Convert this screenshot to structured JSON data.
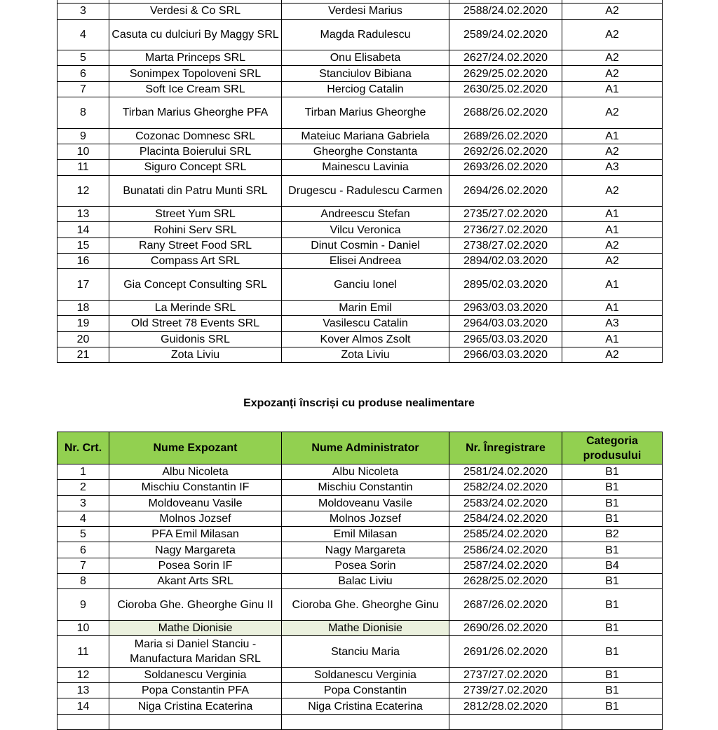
{
  "top_table": {
    "rows": [
      [
        "3",
        "Verdesi & Co SRL",
        "Verdesi Marius",
        "2588/24.02.2020",
        "A2"
      ],
      [
        "4",
        "Casuta cu dulciuri By Maggy SRL",
        "Magda Radulescu",
        "2589/24.02.2020",
        "A2"
      ],
      [
        "5",
        "Marta Princeps SRL",
        "Onu Elisabeta",
        "2627/24.02.2020",
        "A2"
      ],
      [
        "6",
        "Sonimpex Topoloveni SRL",
        "Stanciulov Bibiana",
        "2629/25.02.2020",
        "A2"
      ],
      [
        "7",
        "Soft Ice Cream SRL",
        "Herciog Catalin",
        "2630/25.02.2020",
        "A1"
      ],
      [
        "8",
        "Tirban Marius Gheorghe PFA",
        "Tirban Marius Gheorghe",
        "2688/26.02.2020",
        "A2"
      ],
      [
        "9",
        "Cozonac Domnesc SRL",
        "Mateiuc Mariana Gabriela",
        "2689/26.02.2020",
        "A1"
      ],
      [
        "10",
        "Placinta Boierului SRL",
        "Gheorghe Constanta",
        "2692/26.02.2020",
        "A2"
      ],
      [
        "11",
        "Siguro Concept SRL",
        "Mainescu Lavinia",
        "2693/26.02.2020",
        "A3"
      ],
      [
        "12",
        "Bunatati din Patru Munti SRL",
        "Drugescu - Radulescu Carmen",
        "2694/26.02.2020",
        "A2"
      ],
      [
        "13",
        "Street Yum SRL",
        "Andreescu Stefan",
        "2735/27.02.2020",
        "A1"
      ],
      [
        "14",
        "Rohini Serv SRL",
        "Vilcu Veronica",
        "2736/27.02.2020",
        "A1"
      ],
      [
        "15",
        "Rany Street Food SRL",
        "Dinut Cosmin - Daniel",
        "2738/27.02.2020",
        "A2"
      ],
      [
        "16",
        "Compass Art SRL",
        "Elisei Andreea",
        "2894/02.03.2020",
        "A2"
      ],
      [
        "17",
        "Gia Concept Consulting SRL",
        "Ganciu Ionel",
        "2895/02.03.2020",
        "A1"
      ],
      [
        "18",
        "La Merinde SRL",
        "Marin Emil",
        "2963/03.03.2020",
        "A1"
      ],
      [
        "19",
        "Old Street 78 Events SRL",
        "Vasilescu Catalin",
        "2964/03.03.2020",
        "A3"
      ],
      [
        "20",
        "Guidonis SRL",
        "Kover Almos Zsolt",
        "2965/03.03.2020",
        "A1"
      ],
      [
        "21",
        "Zota Liviu",
        "Zota Liviu",
        "2966/03.03.2020",
        "A2"
      ]
    ]
  },
  "section_title": "Expozanți înscriși cu produse nealimentare",
  "bottom_table": {
    "header": [
      "Nr. Crt.",
      "Nume Expozant",
      "Nume Administrator",
      "Nr. Înregistrare",
      "Categoria produsului"
    ],
    "rows": [
      [
        "1",
        "Albu Nicoleta",
        "Albu Nicoleta",
        "2581/24.02.2020",
        "B1"
      ],
      [
        "2",
        "Mischiu Constantin IF",
        "Mischiu Constantin",
        "2582/24.02.2020",
        "B1"
      ],
      [
        "3",
        "Moldoveanu Vasile",
        "Moldoveanu Vasile",
        "2583/24.02.2020",
        "B1"
      ],
      [
        "4",
        "Molnos Jozsef",
        "Molnos Jozsef",
        "2584/24.02.2020",
        "B1"
      ],
      [
        "5",
        "PFA Emil Milasan",
        "Emil Milasan",
        "2585/24.02.2020",
        "B2"
      ],
      [
        "6",
        "Nagy Margareta",
        "Nagy Margareta",
        "2586/24.02.2020",
        "B1"
      ],
      [
        "7",
        "Posea Sorin IF",
        "Posea Sorin",
        "2587/24.02.2020",
        "B4"
      ],
      [
        "8",
        "Akant Arts SRL",
        "Balac Liviu",
        "2628/25.02.2020",
        "B1"
      ],
      [
        "9",
        "Cioroba Ghe. Gheorghe Ginu II",
        "Cioroba Ghe. Gheorghe Ginu",
        "2687/26.02.2020",
        "B1"
      ],
      [
        "10",
        "Mathe Dionisie",
        "Mathe Dionisie",
        "2690/26.02.2020",
        "B1"
      ],
      [
        "11",
        "Maria si Daniel Stanciu - Manufactura Maridan SRL",
        "Stanciu Maria",
        "2691/26.02.2020",
        "B1"
      ],
      [
        "12",
        "Soldanescu Verginia",
        "Soldanescu Verginia",
        "2737/27.02.2020",
        "B1"
      ],
      [
        "13",
        "Popa Constantin PFA",
        "Popa Constantin",
        "2739/27.02.2020",
        "B1"
      ],
      [
        "14",
        "Niga Cristina Ecaterina",
        "Niga Cristina Ecaterina",
        "2812/28.02.2020",
        "B1"
      ]
    ]
  }
}
